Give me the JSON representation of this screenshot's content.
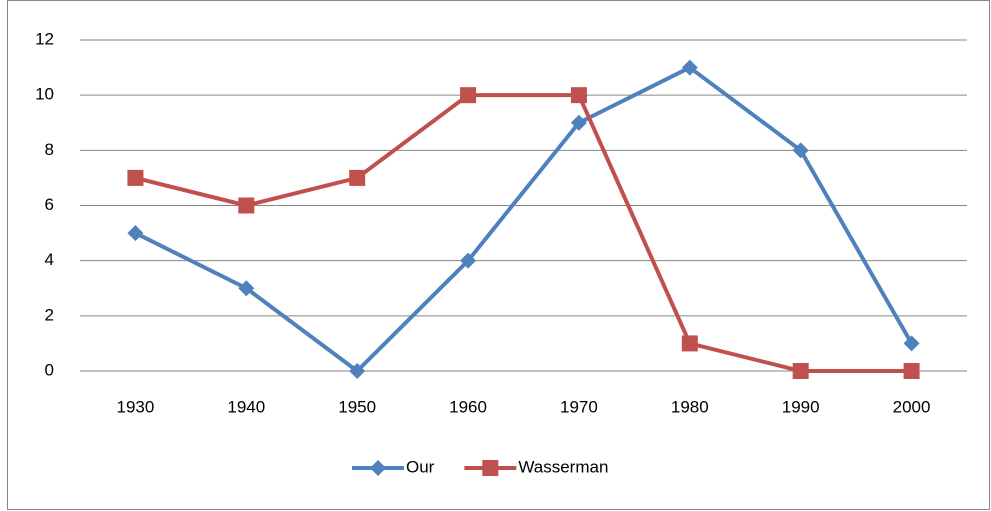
{
  "chart_data": {
    "type": "line",
    "categories": [
      "1930",
      "1940",
      "1950",
      "1960",
      "1970",
      "1980",
      "1990",
      "2000"
    ],
    "series": [
      {
        "name": "Our",
        "color": "#4f81bd",
        "marker": "diamond",
        "values": [
          5,
          3,
          0,
          4,
          9,
          11,
          8,
          1
        ]
      },
      {
        "name": "Wasserman",
        "color": "#c0504d",
        "marker": "square",
        "values": [
          7,
          6,
          7,
          10,
          10,
          1,
          0,
          0
        ]
      }
    ],
    "ylim": [
      0,
      12
    ],
    "yticks": [
      0,
      2,
      4,
      6,
      8,
      10,
      12
    ],
    "grid": true,
    "legend": "bottom"
  }
}
